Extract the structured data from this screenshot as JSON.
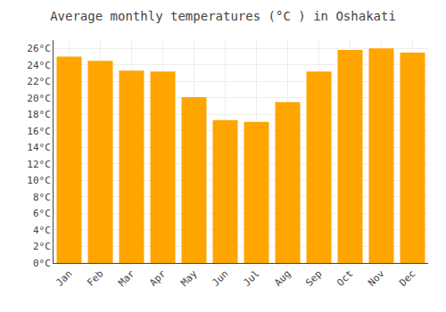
{
  "chart_data": {
    "type": "bar",
    "title": "Average monthly temperatures (°C ) in Oshakati",
    "categories": [
      "Jan",
      "Feb",
      "Mar",
      "Apr",
      "May",
      "Jun",
      "Jul",
      "Aug",
      "Sep",
      "Oct",
      "Nov",
      "Dec"
    ],
    "values": [
      25.0,
      24.5,
      23.3,
      23.2,
      20.1,
      17.3,
      17.1,
      19.5,
      23.2,
      25.8,
      26.0,
      25.5
    ],
    "color": "#FFA500",
    "ylim": [
      0,
      27
    ],
    "yticks": [
      {
        "value": 0,
        "label": "0°C"
      },
      {
        "value": 2,
        "label": "2°C"
      },
      {
        "value": 4,
        "label": "4°C"
      },
      {
        "value": 6,
        "label": "6°C"
      },
      {
        "value": 8,
        "label": "8°C"
      },
      {
        "value": 10,
        "label": "10°C"
      },
      {
        "value": 12,
        "label": "12°C"
      },
      {
        "value": 14,
        "label": "14°C"
      },
      {
        "value": 16,
        "label": "16°C"
      },
      {
        "value": 18,
        "label": "18°C"
      },
      {
        "value": 20,
        "label": "20°C"
      },
      {
        "value": 22,
        "label": "22°C"
      },
      {
        "value": 24,
        "label": "24°C"
      },
      {
        "value": 26,
        "label": "26°C"
      }
    ],
    "grid": true
  }
}
